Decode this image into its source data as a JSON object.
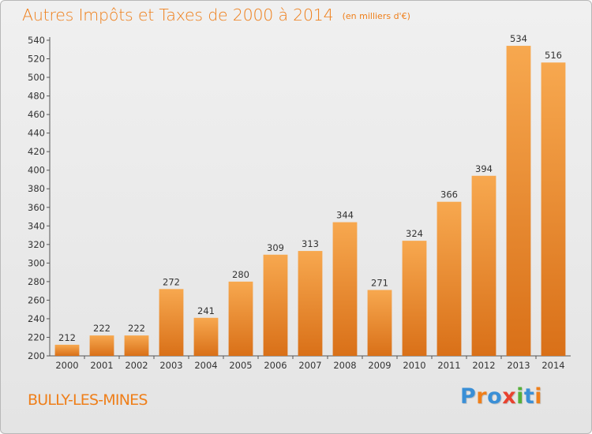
{
  "header": {
    "title": "Autres Impôts et Taxes de 2000 à 2014",
    "subtitle": "(en milliers d'€)"
  },
  "footer": {
    "place": "BULLY-LES-MINES",
    "logo": "Proxiti"
  },
  "colors": {
    "accent": "#ef7f1a",
    "bar_light": "#f7a84f",
    "bar_dark": "#d97018",
    "logo_letters": [
      "#3a8fd6",
      "#ef7f1a",
      "#3a8fd6",
      "#e8422f",
      "#56b03a",
      "#3a8fd6",
      "#ef7f1a"
    ]
  },
  "chart_data": {
    "type": "bar",
    "title": "Autres Impôts et Taxes de 2000 à 2014",
    "subtitle": "(en milliers d'€)",
    "categories": [
      "2000",
      "2001",
      "2002",
      "2003",
      "2004",
      "2005",
      "2006",
      "2007",
      "2008",
      "2009",
      "2010",
      "2011",
      "2012",
      "2013",
      "2014"
    ],
    "values": [
      212,
      222,
      222,
      272,
      241,
      280,
      309,
      313,
      344,
      271,
      324,
      366,
      394,
      534,
      516
    ],
    "ylim": [
      200,
      540
    ],
    "yticks": [
      200,
      220,
      240,
      260,
      280,
      300,
      320,
      340,
      360,
      380,
      400,
      420,
      440,
      460,
      480,
      500,
      520,
      540
    ],
    "grid": false,
    "xlabel": "",
    "ylabel": ""
  }
}
